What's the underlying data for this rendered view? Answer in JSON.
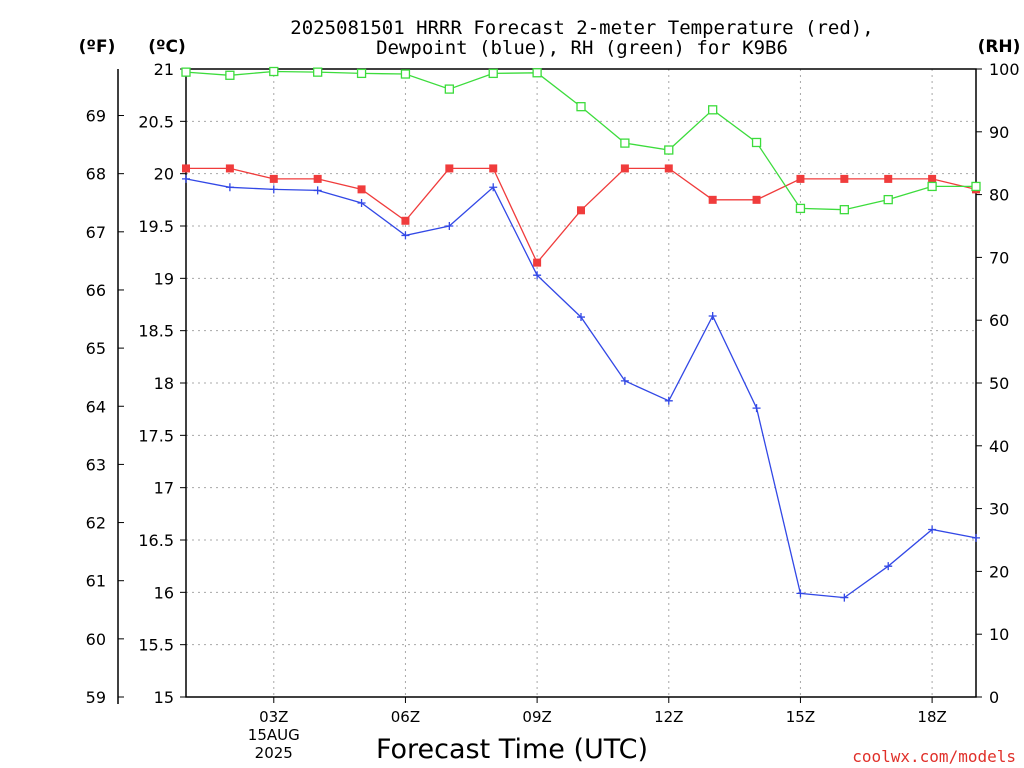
{
  "header": {
    "title_line1": "2025081501 HRRR Forecast 2-meter Temperature (red),",
    "title_line2": "Dewpoint (blue), RH (green) for K9B6"
  },
  "units": {
    "fahrenheit": "(ºF)",
    "celsius": "(ºC)",
    "rh": "(RH)"
  },
  "footer": {
    "xlabel": "Forecast Time (UTC)",
    "credit": "coolwx.com/models"
  },
  "chart_data": {
    "type": "line",
    "title": "2025081501 HRRR Forecast 2-meter Temperature (red), Dewpoint (blue), RH (green) for K9B6",
    "xlabel": "Forecast Time (UTC)",
    "x_hours_utc": [
      1,
      2,
      3,
      4,
      5,
      6,
      7,
      8,
      9,
      10,
      11,
      12,
      13,
      14,
      15,
      16,
      17,
      18,
      19
    ],
    "x_tick_labels": [
      {
        "hour": 3,
        "label": "03Z",
        "sub1": "15AUG",
        "sub2": "2025"
      },
      {
        "hour": 6,
        "label": "06Z"
      },
      {
        "hour": 9,
        "label": "09Z"
      },
      {
        "hour": 12,
        "label": "12Z"
      },
      {
        "hour": 15,
        "label": "15Z"
      },
      {
        "hour": 18,
        "label": "18Z"
      }
    ],
    "xlim": [
      1,
      19
    ],
    "celsius_ticks": [
      "15",
      "15.5",
      "16",
      "16.5",
      "17",
      "17.5",
      "18",
      "18.5",
      "19",
      "19.5",
      "20",
      "20.5",
      "21"
    ],
    "celsius_lim": [
      15,
      21
    ],
    "fahrenheit_ticks": [
      "59",
      "60",
      "61",
      "62",
      "63",
      "64",
      "65",
      "66",
      "67",
      "68",
      "69"
    ],
    "rh_ticks": [
      "0",
      "10",
      "20",
      "30",
      "40",
      "50",
      "60",
      "70",
      "80",
      "90",
      "100"
    ],
    "rh_lim": [
      0,
      100
    ],
    "grid": true,
    "series": [
      {
        "name": "Temperature",
        "units": "C",
        "axis": "left",
        "color": "#f03c3c",
        "marker": "filled-square",
        "values": [
          20.05,
          20.05,
          19.95,
          19.95,
          19.85,
          19.55,
          20.05,
          20.05,
          19.15,
          19.65,
          20.05,
          20.05,
          19.75,
          19.75,
          19.95,
          19.95,
          19.95,
          19.95,
          19.85
        ]
      },
      {
        "name": "Dewpoint",
        "units": "C",
        "axis": "left",
        "color": "#3248e6",
        "marker": "plus",
        "values": [
          19.95,
          19.87,
          19.85,
          19.84,
          19.72,
          19.41,
          19.5,
          19.87,
          19.03,
          18.63,
          18.02,
          17.83,
          18.64,
          17.76,
          15.99,
          15.95,
          16.25,
          16.6,
          16.52
        ]
      },
      {
        "name": "RH",
        "units": "%",
        "axis": "right",
        "color": "#3cdc3c",
        "marker": "open-square",
        "values": [
          99.5,
          99,
          99.6,
          99.5,
          99.3,
          99.2,
          96.8,
          99.3,
          99.4,
          94,
          88.2,
          87.1,
          93.5,
          88.3,
          77.8,
          77.6,
          79.2,
          81.3,
          81.3
        ]
      }
    ]
  }
}
